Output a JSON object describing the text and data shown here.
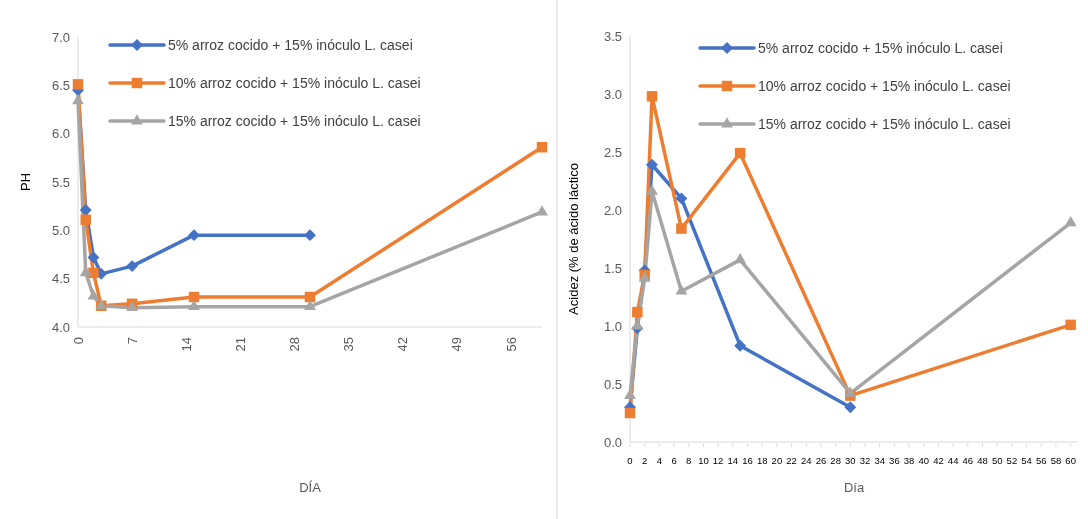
{
  "chart_data": [
    {
      "type": "line",
      "xlabel": "DÍA",
      "ylabel": "PH",
      "xlim": [
        0,
        60
      ],
      "xticks": [
        0,
        7,
        14,
        21,
        28,
        35,
        42,
        49,
        56
      ],
      "ylim": [
        4,
        7
      ],
      "yticks": [
        {
          "value": 4,
          "label": "4.0"
        },
        {
          "value": 4.5,
          "label": "4.5"
        },
        {
          "value": 5,
          "label": "5.0"
        },
        {
          "value": 5.5,
          "label": "5.5"
        },
        {
          "value": 6,
          "label": "6.0"
        },
        {
          "value": 6.5,
          "label": "6.5"
        },
        {
          "value": 7,
          "label": "7.0"
        }
      ],
      "grid": false,
      "legend": "top",
      "series": [
        {
          "name": "5% arroz cocido + 15% inóculo L. casei",
          "color": "#4472c4",
          "marker": "diamond",
          "x": [
            0,
            1,
            2,
            3,
            7,
            15,
            30
          ],
          "values": [
            6.45,
            5.21,
            4.72,
            4.55,
            4.63,
            4.95,
            4.95
          ]
        },
        {
          "name": "10% arroz cocido + 15% inóculo L. casei",
          "color": "#ed7d31",
          "marker": "square",
          "x": [
            0,
            1,
            2,
            3,
            7,
            15,
            30,
            60
          ],
          "values": [
            6.51,
            5.11,
            4.56,
            4.22,
            4.24,
            4.31,
            4.31,
            5.86
          ]
        },
        {
          "name": "15% arroz cocido + 15% inóculo L. casei",
          "color": "#a5a5a5",
          "marker": "triangle",
          "x": [
            0,
            1,
            2,
            3,
            7,
            15,
            30,
            60
          ],
          "values": [
            6.34,
            4.56,
            4.32,
            4.22,
            4.2,
            4.21,
            4.21,
            5.19
          ]
        }
      ]
    },
    {
      "type": "line",
      "xlabel": "Día",
      "ylabel": "Acidez (% de ácido láctico",
      "xlim": [
        0,
        61
      ],
      "xticks": [
        0,
        2,
        4,
        6,
        8,
        10,
        12,
        14,
        16,
        18,
        20,
        22,
        24,
        26,
        28,
        30,
        32,
        34,
        36,
        38,
        40,
        42,
        44,
        46,
        48,
        50,
        52,
        54,
        56,
        58,
        60
      ],
      "ylim": [
        0,
        3.5
      ],
      "yticks": [
        {
          "value": 0,
          "label": "0.0"
        },
        {
          "value": 0.5,
          "label": "0.5"
        },
        {
          "value": 1,
          "label": "1.0"
        },
        {
          "value": 1.5,
          "label": "1.5"
        },
        {
          "value": 2,
          "label": "2.0"
        },
        {
          "value": 2.5,
          "label": "2.5"
        },
        {
          "value": 3,
          "label": "3.0"
        },
        {
          "value": 3.5,
          "label": "3.5"
        }
      ],
      "grid": false,
      "legend": "top right",
      "series": [
        {
          "name": "5% arroz cocido + 15% inóculo L. casei",
          "color": "#4472c4",
          "marker": "diamond",
          "x": [
            0,
            1,
            2,
            3,
            7,
            15,
            30
          ],
          "values": [
            0.3,
            0.98,
            1.48,
            2.39,
            2.1,
            0.83,
            0.3
          ]
        },
        {
          "name": "10% arroz cocido + 15% inóculo L. casei",
          "color": "#ed7d31",
          "marker": "square",
          "x": [
            0,
            1,
            2,
            3,
            7,
            15,
            30,
            60
          ],
          "values": [
            0.25,
            1.12,
            1.44,
            2.98,
            1.84,
            2.49,
            0.4,
            1.01
          ]
        },
        {
          "name": "15% arroz cocido + 15% inóculo L. casei",
          "color": "#a5a5a5",
          "marker": "triangle",
          "x": [
            0,
            1,
            2,
            3,
            7,
            15,
            30,
            60
          ],
          "values": [
            0.4,
            1.0,
            1.41,
            2.16,
            1.3,
            1.57,
            0.42,
            1.89
          ]
        }
      ]
    }
  ]
}
